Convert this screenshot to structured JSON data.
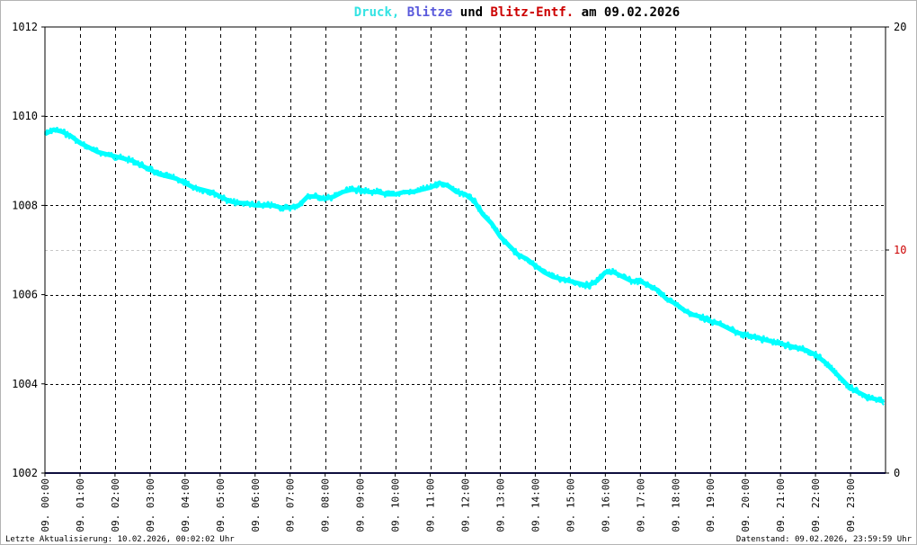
{
  "chart_data": {
    "type": "line",
    "title_parts": [
      {
        "text": "Druck,",
        "color": "#33e3e3"
      },
      {
        "text": "Blitze",
        "color": "#5a5adc"
      },
      {
        "text": "und",
        "color": "#000000"
      },
      {
        "text": "Blitz-Entf.",
        "color": "#cc0000"
      },
      {
        "text": "am 09.02.2026",
        "color": "#000000"
      }
    ],
    "y_left": {
      "min": 1002,
      "max": 1012,
      "ticks": [
        "1002",
        "1004",
        "1006",
        "1008",
        "1010",
        "1012"
      ],
      "color": "#000000"
    },
    "y_right": {
      "min": 0,
      "max": 20,
      "ticks": [
        {
          "label": "0",
          "value": 0,
          "color": "#000000"
        },
        {
          "label": "10",
          "value": 10,
          "color": "#cc0000"
        },
        {
          "label": "20",
          "value": 20,
          "color": "#000000"
        }
      ]
    },
    "x_hours": {
      "min": 0,
      "max": 24
    },
    "x_ticks": [
      {
        "hour": 0,
        "label": "09. 00:00"
      },
      {
        "hour": 1,
        "label": "09. 01:00"
      },
      {
        "hour": 2,
        "label": "09. 02:00"
      },
      {
        "hour": 3,
        "label": "09. 03:00"
      },
      {
        "hour": 4,
        "label": "09. 04:00"
      },
      {
        "hour": 5,
        "label": "09. 05:00"
      },
      {
        "hour": 6,
        "label": "09. 06:00"
      },
      {
        "hour": 7,
        "label": "09. 07:00"
      },
      {
        "hour": 8,
        "label": "09. 08:00"
      },
      {
        "hour": 9,
        "label": "09. 09:00"
      },
      {
        "hour": 10,
        "label": "09. 10:00"
      },
      {
        "hour": 11,
        "label": "09. 11:00"
      },
      {
        "hour": 12,
        "label": "09. 12:00"
      },
      {
        "hour": 13,
        "label": "09. 13:00"
      },
      {
        "hour": 14,
        "label": "09. 14:00"
      },
      {
        "hour": 15,
        "label": "09. 15:00"
      },
      {
        "hour": 16,
        "label": "09. 16:00"
      },
      {
        "hour": 17,
        "label": "09. 17:00"
      },
      {
        "hour": 18,
        "label": "09. 18:00"
      },
      {
        "hour": 19,
        "label": "09. 19:00"
      },
      {
        "hour": 20,
        "label": "09. 20:00"
      },
      {
        "hour": 21,
        "label": "09. 21:00"
      },
      {
        "hour": 22,
        "label": "09. 22:00"
      },
      {
        "hour": 23,
        "label": "09. 23:00"
      }
    ],
    "grid": true,
    "series": [
      {
        "color": "#00ffff",
        "axis": "left",
        "x": [
          0,
          0.25,
          0.5,
          0.75,
          1,
          1.25,
          1.5,
          1.75,
          2,
          2.25,
          2.5,
          2.75,
          3,
          3.25,
          3.5,
          3.75,
          4,
          4.25,
          4.5,
          4.75,
          5,
          5.25,
          5.5,
          5.75,
          6,
          6.25,
          6.5,
          6.75,
          7,
          7.25,
          7.5,
          7.75,
          8,
          8.25,
          8.5,
          8.75,
          9,
          9.25,
          9.5,
          9.75,
          10,
          10.25,
          10.5,
          10.75,
          11,
          11.25,
          11.5,
          11.75,
          12,
          12.25,
          12.5,
          12.75,
          13,
          13.25,
          13.5,
          13.75,
          14,
          14.25,
          14.5,
          14.75,
          15,
          15.25,
          15.5,
          15.75,
          16,
          16.25,
          16.5,
          16.75,
          17,
          17.25,
          17.5,
          17.75,
          18,
          18.25,
          18.5,
          18.75,
          19,
          19.25,
          19.5,
          19.75,
          20,
          20.25,
          20.5,
          20.75,
          21,
          21.25,
          21.5,
          21.75,
          22,
          22.25,
          22.5,
          22.75,
          23,
          23.25,
          23.5,
          23.75,
          23.95
        ],
        "y": [
          1009.6,
          1009.7,
          1009.65,
          1009.55,
          1009.4,
          1009.3,
          1009.2,
          1009.15,
          1009.1,
          1009.05,
          1009.0,
          1008.9,
          1008.8,
          1008.7,
          1008.65,
          1008.6,
          1008.5,
          1008.4,
          1008.35,
          1008.3,
          1008.2,
          1008.1,
          1008.05,
          1008.05,
          1008.0,
          1008.0,
          1008.0,
          1007.95,
          1007.95,
          1008.0,
          1008.2,
          1008.2,
          1008.15,
          1008.2,
          1008.3,
          1008.35,
          1008.35,
          1008.3,
          1008.3,
          1008.25,
          1008.25,
          1008.3,
          1008.3,
          1008.35,
          1008.4,
          1008.5,
          1008.45,
          1008.3,
          1008.25,
          1008.1,
          1007.8,
          1007.6,
          1007.3,
          1007.1,
          1006.9,
          1006.8,
          1006.65,
          1006.5,
          1006.4,
          1006.35,
          1006.3,
          1006.25,
          1006.2,
          1006.3,
          1006.5,
          1006.5,
          1006.4,
          1006.3,
          1006.3,
          1006.2,
          1006.1,
          1005.9,
          1005.8,
          1005.65,
          1005.55,
          1005.5,
          1005.4,
          1005.35,
          1005.25,
          1005.15,
          1005.1,
          1005.05,
          1005.0,
          1004.95,
          1004.9,
          1004.85,
          1004.8,
          1004.75,
          1004.65,
          1004.5,
          1004.3,
          1004.1,
          1003.9,
          1003.8,
          1003.7,
          1003.65,
          1003.6
        ]
      },
      {
        "color": "#1c1c7a",
        "axis": "right",
        "x": [
          0,
          24
        ],
        "y": [
          0,
          0
        ]
      }
    ]
  },
  "footer": {
    "left": "Letzte Aktualisierung: 10.02.2026, 00:02:02 Uhr",
    "right": "Datenstand: 09.02.2026, 23:59:59 Uhr"
  }
}
